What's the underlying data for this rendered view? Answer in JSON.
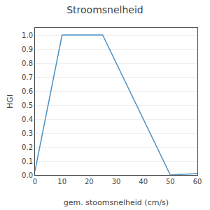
{
  "chart_data": {
    "type": "line",
    "title": "Stroomsnelheid",
    "xlabel": "gem. stoomsnelheid (cm/s)",
    "ylabel": "HGI",
    "x": [
      0,
      10,
      25,
      50,
      60
    ],
    "values": [
      0.03,
      1.0,
      1.0,
      0.0,
      0.01
    ],
    "color": "#4a90c4",
    "xlim": [
      0,
      60
    ],
    "ylim": [
      0.0,
      1.05
    ],
    "xticks": [
      0,
      10,
      20,
      30,
      40,
      50,
      60
    ],
    "yticks": [
      {
        "value": 0.0,
        "label": "0.0"
      },
      0.1,
      0.2,
      0.3,
      0.4,
      0.5,
      0.6,
      0.7,
      0.8,
      0.9,
      {
        "value": 1.0,
        "label": "1.0"
      }
    ],
    "grid": "y"
  }
}
